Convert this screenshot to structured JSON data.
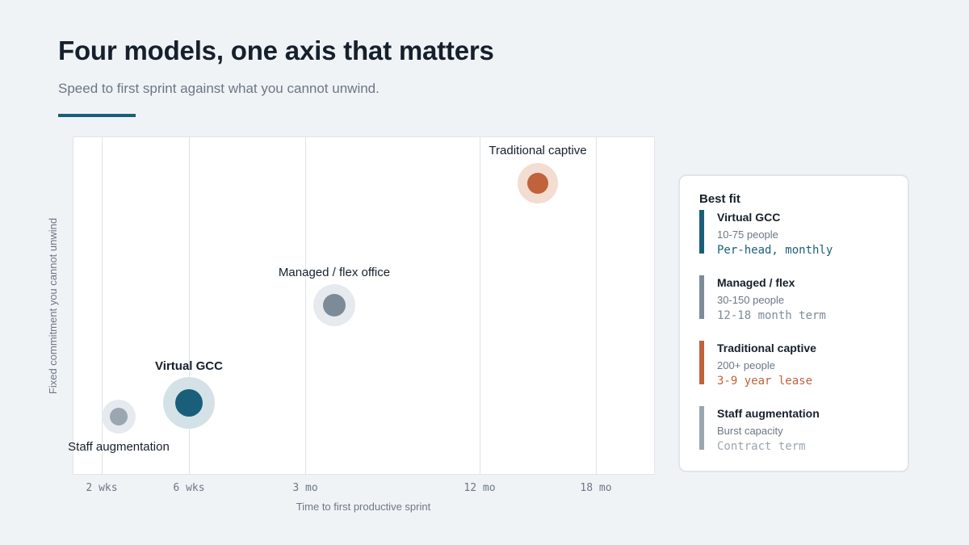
{
  "header": {
    "title": "Four models, one axis that matters",
    "subtitle": "Speed to first sprint against what you cannot unwind."
  },
  "colors": {
    "accent": "#1a5f7a",
    "virtual_gcc": "#1a5f7a",
    "managed_flex": "#7d8b99",
    "traditional_captive": "#c0623a",
    "staff_augmentation": "#9aa6b2"
  },
  "chart_data": {
    "type": "scatter",
    "xlabel": "Time to first productive sprint",
    "ylabel": "Fixed commitment you cannot unwind",
    "x_ticks": [
      "2 wks",
      "6 wks",
      "3 mo",
      "12 mo",
      "18 mo"
    ],
    "grid": true,
    "legend_placement": "right",
    "points": [
      {
        "name": "Staff augmentation",
        "x": "2.5 wks",
        "emphasis": false,
        "color": "#9aa6b2"
      },
      {
        "name": "Virtual GCC",
        "x": "6 wks",
        "emphasis": true,
        "color": "#1a5f7a"
      },
      {
        "name": "Managed / flex office",
        "x": "3.5 mo",
        "emphasis": false,
        "color": "#7d8b99"
      },
      {
        "name": "Traditional captive",
        "x": "15 mo",
        "emphasis": false,
        "color": "#c0623a"
      }
    ]
  },
  "legend": {
    "title": "Best fit",
    "items": [
      {
        "name": "Virtual GCC",
        "size": "10-75 people",
        "term": "Per-head, monthly",
        "color": "#1a5f7a",
        "term_color": "#1a5f7a"
      },
      {
        "name": "Managed / flex",
        "size": "30-150 people",
        "term": "12-18 month term",
        "color": "#7d8b99",
        "term_color": "#7d8b99"
      },
      {
        "name": "Traditional captive",
        "size": "200+ people",
        "term": "3-9 year lease",
        "color": "#c0623a",
        "term_color": "#c0623a"
      },
      {
        "name": "Staff augmentation",
        "size": "Burst capacity",
        "term": "Contract term",
        "color": "#9aa6b2",
        "term_color": "#9aa6b2"
      }
    ]
  }
}
